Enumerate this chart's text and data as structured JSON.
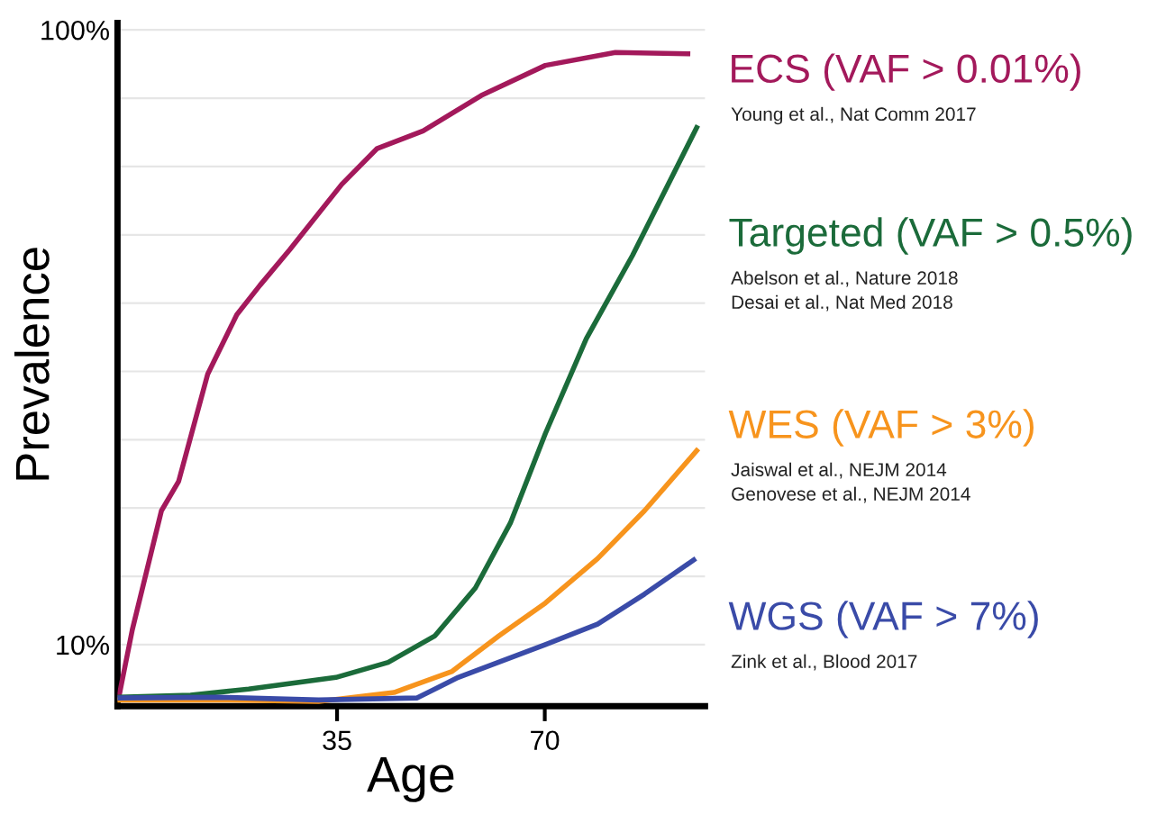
{
  "chart_data": {
    "type": "line",
    "xlabel": "Age",
    "ylabel": "Prevalence",
    "xlim": [
      -2,
      97
    ],
    "xticks": [
      35,
      70
    ],
    "ylim": [
      1,
      101
    ],
    "yticks": [
      {
        "value": 10,
        "label": "10%"
      },
      {
        "value": 20,
        "label": null
      },
      {
        "value": 30,
        "label": null
      },
      {
        "value": 40,
        "label": null
      },
      {
        "value": 50,
        "label": null
      },
      {
        "value": 60,
        "label": null
      },
      {
        "value": 70,
        "label": null
      },
      {
        "value": 80,
        "label": null
      },
      {
        "value": 90,
        "label": null
      },
      {
        "value": 100,
        "label": "100%"
      }
    ],
    "grid": "y",
    "legend": "right",
    "marker": "none",
    "line_style": "solid",
    "series": [
      {
        "name": "ECS (VAF > 0.01%)",
        "color": "#a3195b",
        "x": [
          -1.8,
          0.5,
          5.4,
          8.3,
          13.2,
          18.1,
          22,
          27,
          35.8,
          41.7,
          49.5,
          59.3,
          70.1,
          81.9,
          94.1
        ],
        "values": [
          2.2,
          12.2,
          29.6,
          33.9,
          49.6,
          58.3,
          62.6,
          67.8,
          77.4,
          82.6,
          85.2,
          90.4,
          94.8,
          96.7,
          96.5
        ]
      },
      {
        "name": "Targeted (VAF > 0.5%)",
        "color": "#1b6b3a",
        "x": [
          -1.8,
          10.3,
          20.1,
          34.8,
          43.6,
          51.5,
          58.3,
          64.2,
          70.1,
          77,
          84.8,
          95.6
        ],
        "values": [
          2.3,
          2.6,
          3.5,
          5.2,
          7.4,
          11.3,
          18.3,
          27.8,
          40.9,
          54.8,
          67,
          85.7
        ]
      },
      {
        "name": "WES (VAF > 3%)",
        "color": "#f7941d",
        "x": [
          -1.8,
          15.2,
          31.9,
          44.6,
          54.4,
          62.3,
          70.1,
          78.9,
          86.8,
          95.6
        ],
        "values": [
          1.9,
          1.9,
          1.7,
          3.0,
          6.1,
          11.3,
          16.1,
          22.6,
          29.6,
          38.4
        ]
      },
      {
        "name": "WGS (VAF > 7%)",
        "color": "#3a4ba8",
        "x": [
          -1.8,
          15.2,
          31.9,
          48.5,
          55.4,
          70.1,
          78.9,
          86.8,
          95.1
        ],
        "values": [
          2.2,
          2.3,
          1.9,
          2.2,
          5.2,
          10,
          13,
          17.4,
          22.4
        ]
      }
    ],
    "annotations": [
      "Young et al., Nat Comm 2017",
      "Abelson et al., Nature 2018\nDesai et al., Nat Med 2018",
      "Jaiswal et al., NEJM 2014\nGenovese et al., NEJM 2014",
      "Zink et al., Blood 2017"
    ]
  }
}
